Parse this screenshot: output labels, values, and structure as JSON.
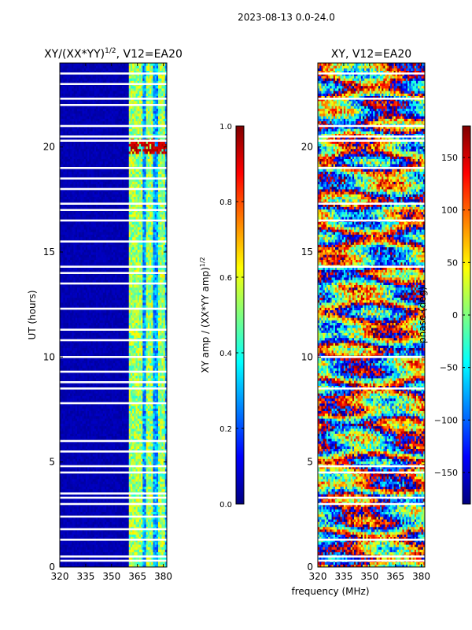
{
  "suptitle": "2023-08-13 0.0-24.0",
  "colormap": [
    "#00007f",
    "#0000ff",
    "#007fff",
    "#00ffff",
    "#7fff7f",
    "#ffff00",
    "#ff7f00",
    "#ff0000",
    "#7f0000"
  ],
  "chart_data": [
    {
      "type": "heatmap",
      "title_text": "XY/(XX*YY)",
      "title_exp": "1/2",
      "title_suffix": ", V12=EA20",
      "xlabel": "",
      "ylabel": "UT (hours)",
      "xlim": [
        320,
        382
      ],
      "ylim": [
        0,
        24
      ],
      "xticks": [
        320,
        335,
        350,
        365,
        380
      ],
      "yticks": [
        0,
        5,
        10,
        15,
        20
      ],
      "colorbar": {
        "label_text": "XY amp / (XX*YY amp)",
        "label_exp": "1/2",
        "range": [
          0.0,
          1.0
        ],
        "ticks": [
          "0.0",
          "0.2",
          "0.4",
          "0.6",
          "0.8",
          "1.0"
        ]
      },
      "description_values": {
        "bright_channels_MHz": [
          362,
          366,
          372,
          379
        ],
        "flagged_hours": [
          0.3,
          0.5,
          1.3,
          1.8,
          2.4,
          3.0,
          3.3,
          3.5,
          4.5,
          4.8,
          5.5,
          6.0,
          7.8,
          8.5,
          8.8,
          9.3,
          10.0,
          10.8,
          11.3,
          12.3,
          13.5,
          14.0,
          14.3,
          15.5,
          16.5,
          17.0,
          17.3,
          18.0,
          18.5,
          19.0,
          20.3,
          20.5,
          21.0,
          22.0,
          22.3,
          23.0,
          23.5
        ],
        "hot_spot_hour": 20.0
      }
    },
    {
      "type": "heatmap",
      "title_text": "XY, V12=EA20",
      "xlabel": "frequency (MHz)",
      "ylabel": "",
      "xlim": [
        320,
        382
      ],
      "ylim": [
        0,
        24
      ],
      "xticks": [
        320,
        335,
        350,
        365,
        380
      ],
      "yticks": [
        0,
        5,
        10,
        15,
        20
      ],
      "colorbar": {
        "label_text": "phase (deg)",
        "range": [
          -180,
          180
        ],
        "ticks": [
          "-150",
          "-100",
          "-50",
          "0",
          "50",
          "100",
          "150"
        ]
      },
      "description_values": {
        "flagged_hours": [
          0.3,
          0.5,
          1.3,
          3.0,
          3.3,
          4.5,
          4.8,
          8.5,
          10.0,
          14.3,
          16.5,
          17.3,
          19.0,
          20.3,
          20.5,
          21.0,
          22.3,
          23.5
        ]
      }
    }
  ]
}
